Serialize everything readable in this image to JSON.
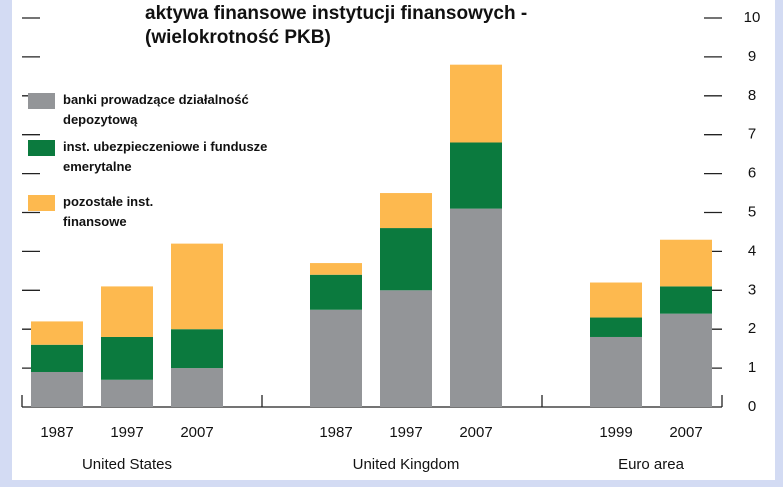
{
  "chart_data": {
    "type": "stacked-bar",
    "title": [
      "aktywa finansowe instytucji finansowych -",
      "(wielokrotność PKB)"
    ],
    "groups": [
      {
        "name": "United States",
        "categories": [
          "1987",
          "1997",
          "2007"
        ]
      },
      {
        "name": "United Kingdom",
        "categories": [
          "1987",
          "1997",
          "2007"
        ]
      },
      {
        "name": "Euro area",
        "categories": [
          "1999",
          "2007"
        ]
      }
    ],
    "series": [
      {
        "name": "banki prowadzące działalność depozytową",
        "color": "#939598",
        "values": [
          0.9,
          0.7,
          1.0,
          2.5,
          3.0,
          5.1,
          1.8,
          2.4
        ]
      },
      {
        "name": "inst. ubezpieczeniowe i fundusze emerytalne",
        "color": "#0b7a3e",
        "values": [
          0.7,
          1.1,
          1.0,
          0.9,
          1.6,
          1.7,
          0.5,
          0.7
        ]
      },
      {
        "name": "pozostałe inst. finansowe",
        "color": "#fdb94f",
        "values": [
          0.6,
          1.3,
          2.2,
          0.3,
          0.9,
          2.0,
          0.9,
          1.2
        ]
      }
    ],
    "ylim": [
      0,
      10
    ],
    "yticks": [
      0,
      1,
      2,
      3,
      4,
      5,
      6,
      7,
      8,
      9,
      10
    ]
  }
}
